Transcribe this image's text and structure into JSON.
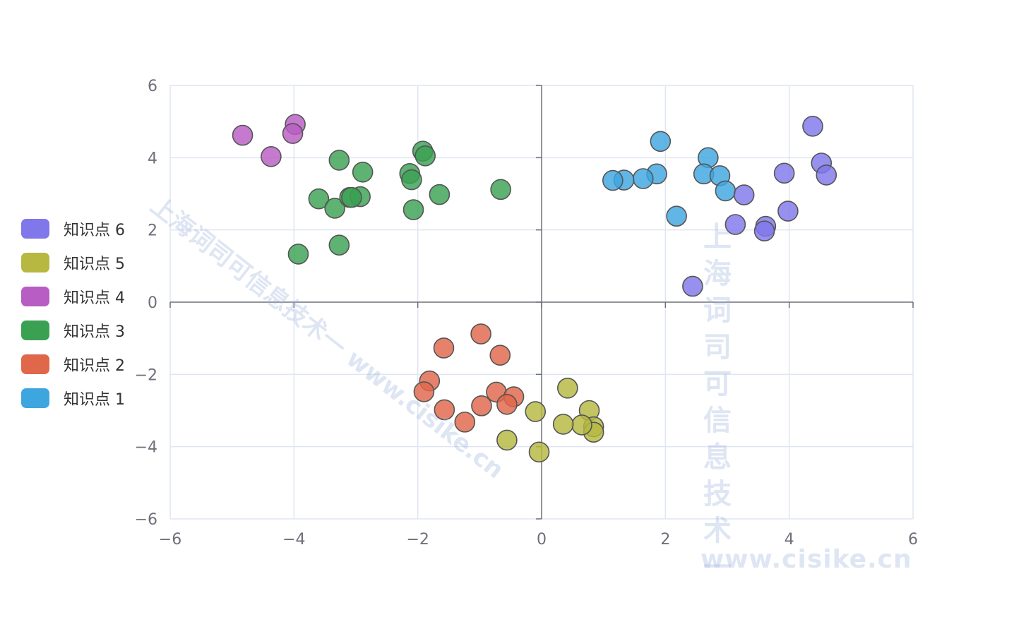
{
  "chart_data": {
    "type": "scatter",
    "xlim": [
      -6,
      6
    ],
    "ylim": [
      -6,
      6
    ],
    "x_ticks": [
      "−6",
      "−4",
      "−2",
      "0",
      "2",
      "4",
      "6"
    ],
    "y_ticks": [
      "−6",
      "−4",
      "−2",
      "0",
      "2",
      "4",
      "6"
    ],
    "grid": true,
    "legend_position": "left",
    "series": [
      {
        "name": "知识点 6",
        "color": "#8077ea",
        "points": [
          [
            4.38,
            4.87
          ],
          [
            4.52,
            3.85
          ],
          [
            4.6,
            3.52
          ],
          [
            3.92,
            3.57
          ],
          [
            3.98,
            2.52
          ],
          [
            3.13,
            2.15
          ],
          [
            3.62,
            2.1
          ],
          [
            3.6,
            1.97
          ],
          [
            3.27,
            2.97
          ],
          [
            2.44,
            0.44
          ]
        ]
      },
      {
        "name": "知识点 5",
        "color": "#b6b841",
        "points": [
          [
            0.42,
            -2.38
          ],
          [
            -0.1,
            -3.03
          ],
          [
            0.77,
            -3.0
          ],
          [
            0.84,
            -3.45
          ],
          [
            0.84,
            -3.6
          ],
          [
            0.65,
            -3.4
          ],
          [
            0.35,
            -3.38
          ],
          [
            -0.56,
            -3.82
          ],
          [
            -0.04,
            -4.15
          ]
        ]
      },
      {
        "name": "知识点 4",
        "color": "#b85dc3",
        "points": [
          [
            -4.83,
            4.62
          ],
          [
            -3.98,
            4.92
          ],
          [
            -4.02,
            4.67
          ],
          [
            -4.37,
            4.03
          ]
        ]
      },
      {
        "name": "知识点 3",
        "color": "#3aa153",
        "points": [
          [
            -1.92,
            4.18
          ],
          [
            -1.88,
            4.05
          ],
          [
            -2.13,
            3.56
          ],
          [
            -2.1,
            3.39
          ],
          [
            -2.07,
            2.56
          ],
          [
            -1.65,
            2.98
          ],
          [
            -0.66,
            3.12
          ],
          [
            -3.27,
            3.93
          ],
          [
            -2.89,
            3.6
          ],
          [
            -3.6,
            2.86
          ],
          [
            -3.34,
            2.6
          ],
          [
            -3.1,
            2.9
          ],
          [
            -2.93,
            2.92
          ],
          [
            -3.07,
            2.9
          ],
          [
            -3.93,
            1.33
          ],
          [
            -3.27,
            1.58
          ]
        ]
      },
      {
        "name": "知识点 2",
        "color": "#e0674a",
        "points": [
          [
            -0.98,
            -0.88
          ],
          [
            -1.58,
            -1.27
          ],
          [
            -0.67,
            -1.47
          ],
          [
            -1.81,
            -2.18
          ],
          [
            -1.9,
            -2.48
          ],
          [
            -0.73,
            -2.49
          ],
          [
            -0.45,
            -2.62
          ],
          [
            -0.56,
            -2.83
          ],
          [
            -0.97,
            -2.87
          ],
          [
            -1.57,
            -2.98
          ],
          [
            -1.24,
            -3.32
          ]
        ]
      },
      {
        "name": "知识点 1",
        "color": "#3ea6df",
        "points": [
          [
            1.92,
            4.45
          ],
          [
            2.69,
            4.0
          ],
          [
            1.86,
            3.55
          ],
          [
            1.64,
            3.42
          ],
          [
            1.33,
            3.38
          ],
          [
            1.15,
            3.37
          ],
          [
            2.62,
            3.55
          ],
          [
            2.88,
            3.5
          ],
          [
            2.97,
            3.08
          ],
          [
            2.18,
            2.38
          ]
        ]
      }
    ]
  },
  "watermark": {
    "diagonal": "上海词司可信息技术一 www.cisike.cn",
    "vertical": "上海词司可信息技术一",
    "url": "www.cisike.cn"
  }
}
